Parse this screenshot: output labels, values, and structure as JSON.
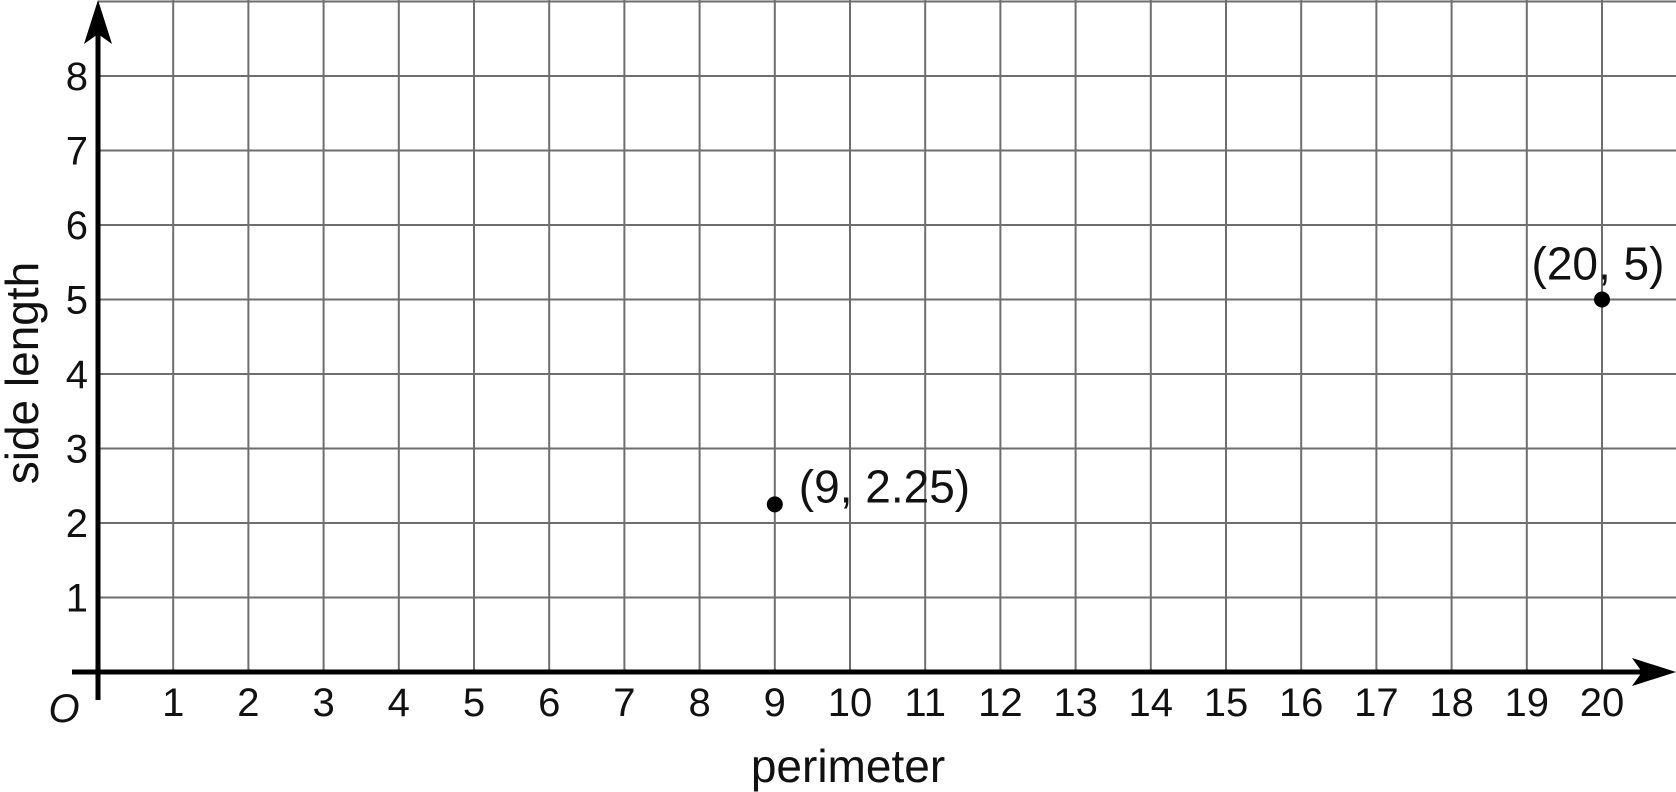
{
  "chart_data": {
    "type": "scatter",
    "xlabel": "perimeter",
    "ylabel": "side length",
    "origin_label": "O",
    "xlim": [
      0,
      21
    ],
    "ylim": [
      0,
      8.4
    ],
    "x_ticks": [
      1,
      2,
      3,
      4,
      5,
      6,
      7,
      8,
      9,
      10,
      11,
      12,
      13,
      14,
      15,
      16,
      17,
      18,
      19,
      20
    ],
    "y_ticks": [
      1,
      2,
      3,
      4,
      5,
      6,
      7,
      8
    ],
    "grid": true,
    "points": [
      {
        "x": 9,
        "y": 2.25,
        "label": "(9, 2.25)"
      },
      {
        "x": 20,
        "y": 5,
        "label": "(20, 5)"
      }
    ],
    "colors": {
      "grid": "#6e6e6e",
      "axis": "#000000",
      "point": "#000000"
    }
  }
}
